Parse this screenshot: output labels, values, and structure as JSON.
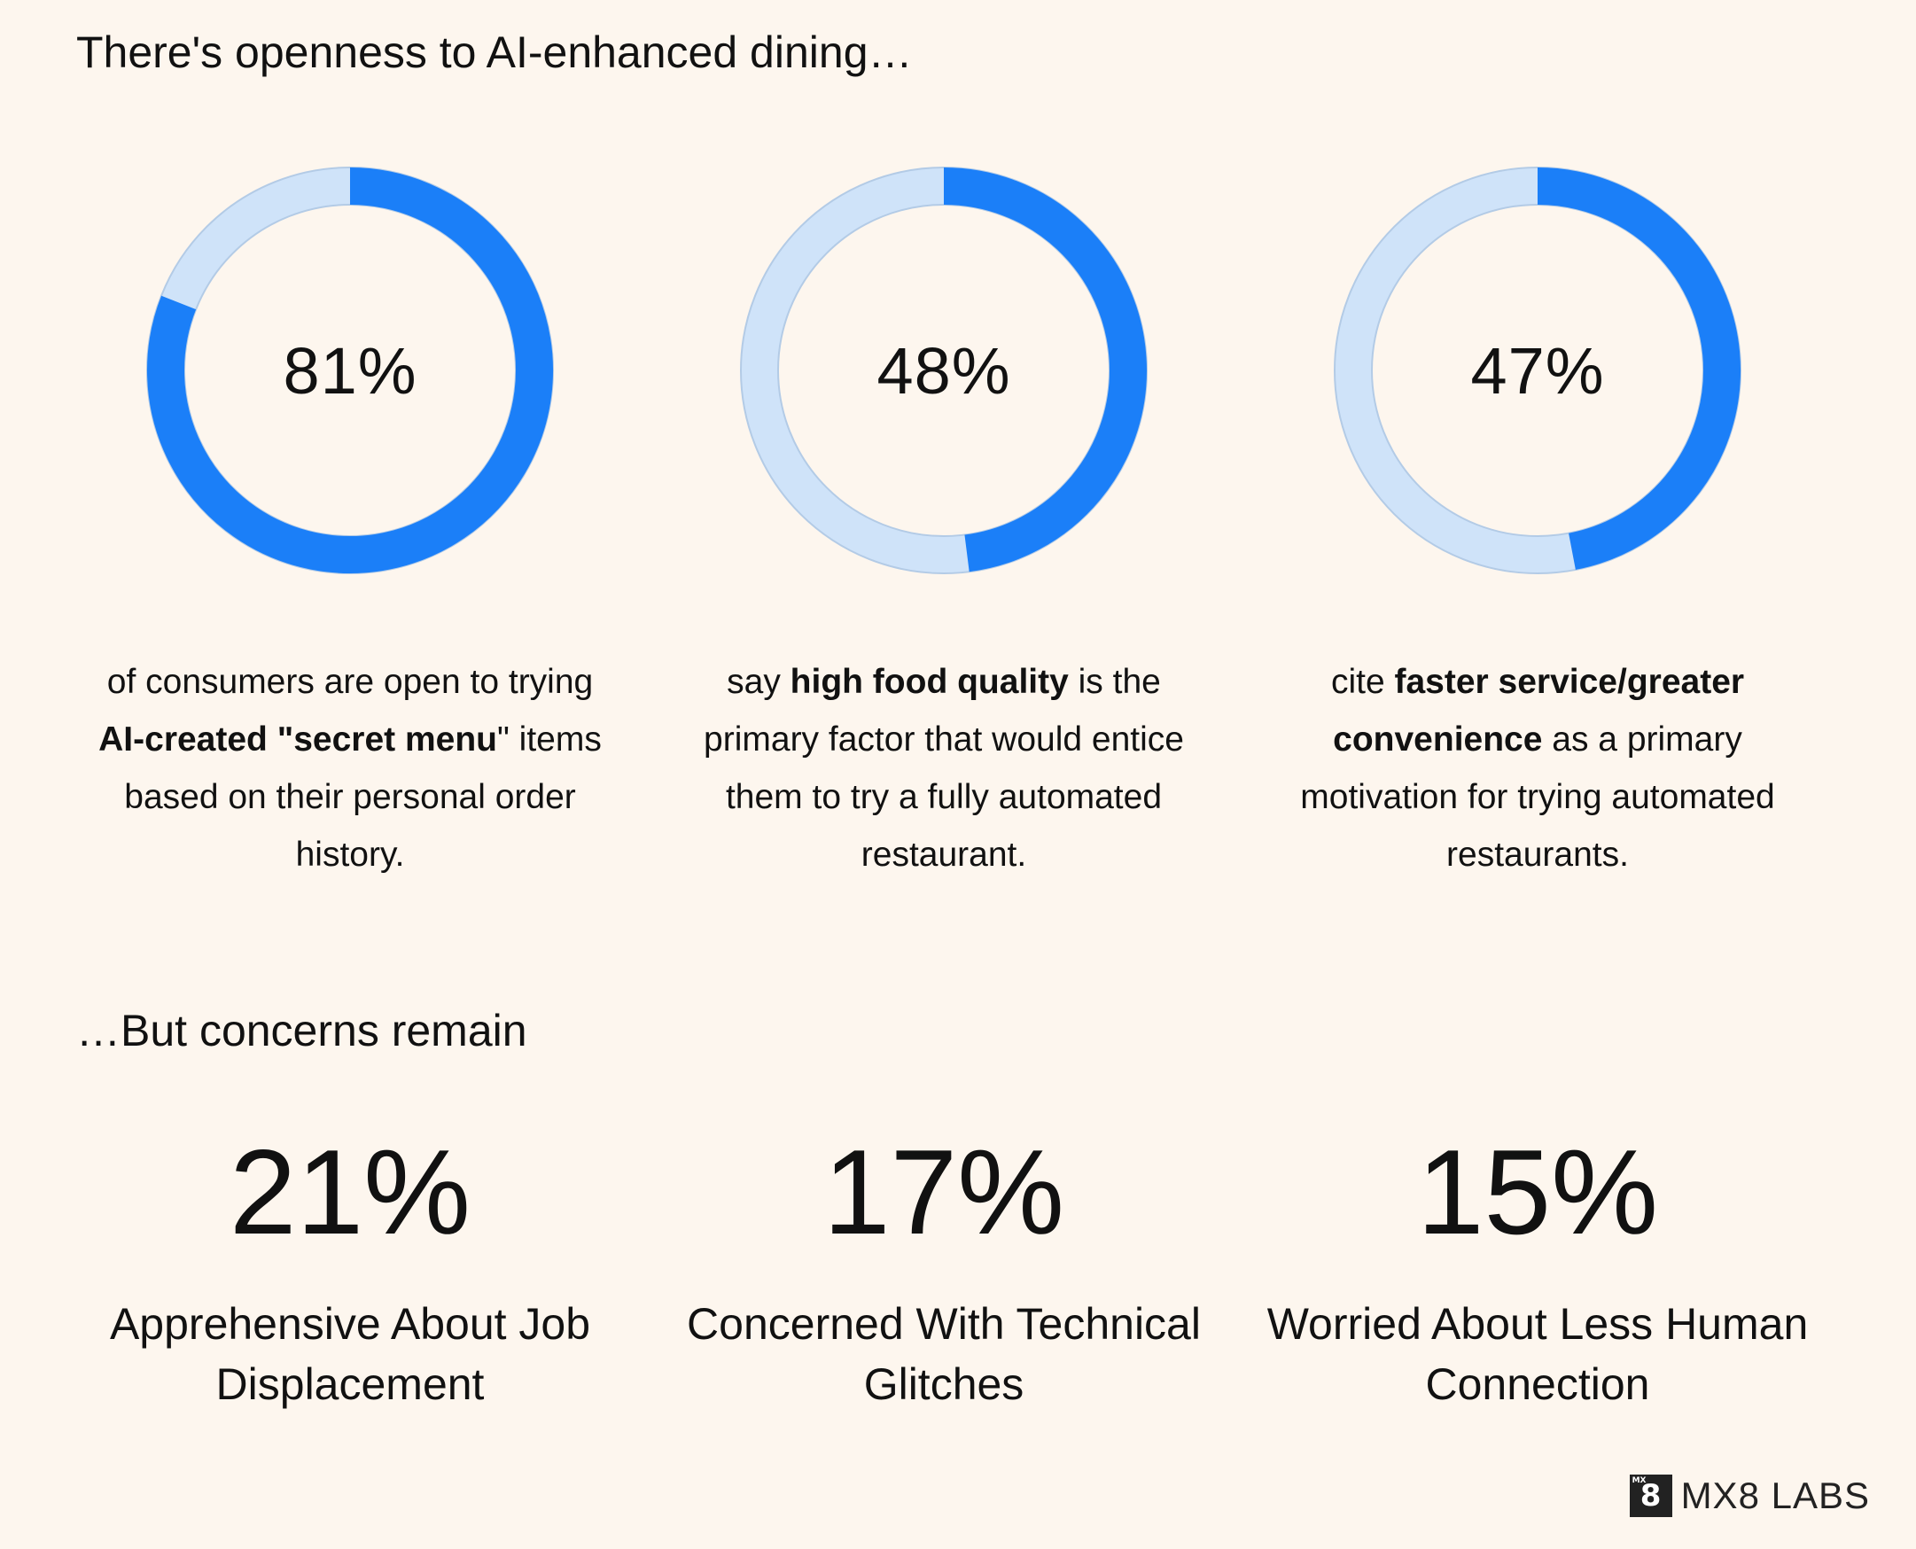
{
  "colors": {
    "background": "#fdf6ee",
    "accent": "#1b7ff8",
    "track": "#cfe3f9",
    "track_stroke": "#b3cbe6",
    "text": "#111111"
  },
  "section1": {
    "title": "There's openness to AI-enhanced dining…"
  },
  "section2": {
    "title": "…But concerns remain"
  },
  "chart_data": [
    {
      "type": "pie",
      "variant": "donut",
      "value": 81,
      "unit": "%",
      "label": "81%",
      "description": [
        {
          "text": "of consumers are open to trying ",
          "bold": false
        },
        {
          "text": "AI-created \"secret menu",
          "bold": true
        },
        {
          "text": "\" items based on their personal order history.",
          "bold": false
        }
      ]
    },
    {
      "type": "pie",
      "variant": "donut",
      "value": 48,
      "unit": "%",
      "label": "48%",
      "description": [
        {
          "text": "say ",
          "bold": false
        },
        {
          "text": "high food quality",
          "bold": true
        },
        {
          "text": " is the primary factor that would entice them to try a fully automated restaurant.",
          "bold": false
        }
      ]
    },
    {
      "type": "pie",
      "variant": "donut",
      "value": 47,
      "unit": "%",
      "label": "47%",
      "description": [
        {
          "text": "cite ",
          "bold": false
        },
        {
          "text": "faster service/greater convenience",
          "bold": true
        },
        {
          "text": " as a primary motivation for trying automated restaurants.",
          "bold": false
        }
      ]
    }
  ],
  "concerns": [
    {
      "value": "21%",
      "label": "Apprehensive About Job Displacement"
    },
    {
      "value": "17%",
      "label": "Concerned With Technical Glitches"
    },
    {
      "value": "15%",
      "label": "Worried About Less Human Connection"
    }
  ],
  "logo": {
    "mark_main": "8",
    "mark_mini": "MX",
    "text": "MX8 LABS"
  }
}
